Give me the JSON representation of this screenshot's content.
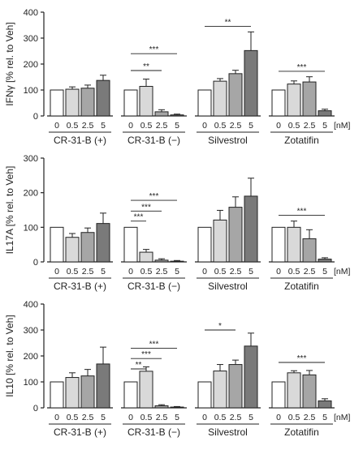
{
  "colors": {
    "axis": "#222222",
    "error": "#222222",
    "dose_fills": [
      "#ffffff",
      "#d9d9d9",
      "#a6a6a6",
      "#7a7a7a"
    ]
  },
  "chart_data": [
    {
      "type": "bar",
      "ylabel": "IFNγ [% rel. to Veh]",
      "ylim": [
        0,
        400
      ],
      "yticks": [
        0,
        100,
        200,
        300,
        400
      ],
      "doses": [
        "0",
        "0.5",
        "2.5",
        "5"
      ],
      "unit": "[nM]",
      "groups": [
        {
          "name": "CR-31-B (+)",
          "values": [
            100,
            103,
            107,
            137
          ],
          "errors": [
            0,
            9,
            12,
            20
          ]
        },
        {
          "name": "CR-31-B (−)",
          "values": [
            100,
            114,
            16,
            4
          ],
          "errors": [
            0,
            28,
            8,
            3
          ]
        },
        {
          "name": "Silvestrol",
          "values": [
            100,
            134,
            163,
            252
          ],
          "errors": [
            0,
            10,
            13,
            72
          ]
        },
        {
          "name": "Zotatifin",
          "values": [
            100,
            123,
            131,
            20
          ],
          "errors": [
            0,
            12,
            20,
            6
          ]
        }
      ],
      "brackets": [
        {
          "group": 1,
          "from": 0,
          "to": 3,
          "label": "***",
          "y": 240
        },
        {
          "group": 1,
          "from": 0,
          "to": 2,
          "label": "**",
          "y": 175
        },
        {
          "group": 2,
          "from": 0,
          "to": 3,
          "label": "**",
          "y": 345
        },
        {
          "group": 3,
          "from": 0,
          "to": 3,
          "label": "***",
          "y": 172
        }
      ]
    },
    {
      "type": "bar",
      "ylabel": "IL17A [% rel. to Veh]",
      "ylim": [
        0,
        300
      ],
      "yticks": [
        0,
        100,
        200,
        300
      ],
      "doses": [
        "0",
        "0.5",
        "2.5",
        "5"
      ],
      "unit": "[nM]",
      "groups": [
        {
          "name": "CR-31-B (+)",
          "values": [
            100,
            71,
            85,
            111
          ],
          "errors": [
            0,
            11,
            13,
            30
          ]
        },
        {
          "name": "CR-31-B (−)",
          "values": [
            100,
            28,
            5,
            2
          ],
          "errors": [
            0,
            8,
            4,
            2
          ]
        },
        {
          "name": "Silvestrol",
          "values": [
            100,
            121,
            158,
            190
          ],
          "errors": [
            0,
            28,
            30,
            52
          ]
        },
        {
          "name": "Zotatifin",
          "values": [
            100,
            100,
            67,
            8
          ],
          "errors": [
            0,
            18,
            26,
            4
          ]
        }
      ],
      "brackets": [
        {
          "group": 1,
          "from": 0,
          "to": 3,
          "label": "***",
          "y": 178
        },
        {
          "group": 1,
          "from": 0,
          "to": 2,
          "label": "***",
          "y": 147
        },
        {
          "group": 1,
          "from": 0,
          "to": 1,
          "label": "***",
          "y": 118
        },
        {
          "group": 3,
          "from": 0,
          "to": 3,
          "label": "***",
          "y": 135
        }
      ]
    },
    {
      "type": "bar",
      "ylabel": "IL10 [% rel. to Veh]",
      "ylim": [
        0,
        400
      ],
      "yticks": [
        0,
        100,
        200,
        300,
        400
      ],
      "doses": [
        "0",
        "0.5",
        "2.5",
        "5"
      ],
      "unit": "[nM]",
      "groups": [
        {
          "name": "CR-31-B (+)",
          "values": [
            100,
            117,
            123,
            169
          ],
          "errors": [
            0,
            18,
            25,
            65
          ]
        },
        {
          "name": "CR-31-B (−)",
          "values": [
            100,
            141,
            8,
            3
          ],
          "errors": [
            0,
            17,
            4,
            2
          ]
        },
        {
          "name": "Silvestrol",
          "values": [
            100,
            142,
            167,
            238
          ],
          "errors": [
            0,
            25,
            17,
            50
          ]
        },
        {
          "name": "Zotatifin",
          "values": [
            100,
            135,
            127,
            27
          ],
          "errors": [
            0,
            8,
            17,
            8
          ]
        }
      ],
      "brackets": [
        {
          "group": 1,
          "from": 0,
          "to": 3,
          "label": "***",
          "y": 230
        },
        {
          "group": 1,
          "from": 0,
          "to": 2,
          "label": "***",
          "y": 190
        },
        {
          "group": 1,
          "from": 0,
          "to": 1,
          "label": "**",
          "y": 150
        },
        {
          "group": 2,
          "from": 0,
          "to": 2,
          "label": "*",
          "y": 300
        },
        {
          "group": 3,
          "from": 0,
          "to": 3,
          "label": "***",
          "y": 175
        }
      ]
    }
  ]
}
